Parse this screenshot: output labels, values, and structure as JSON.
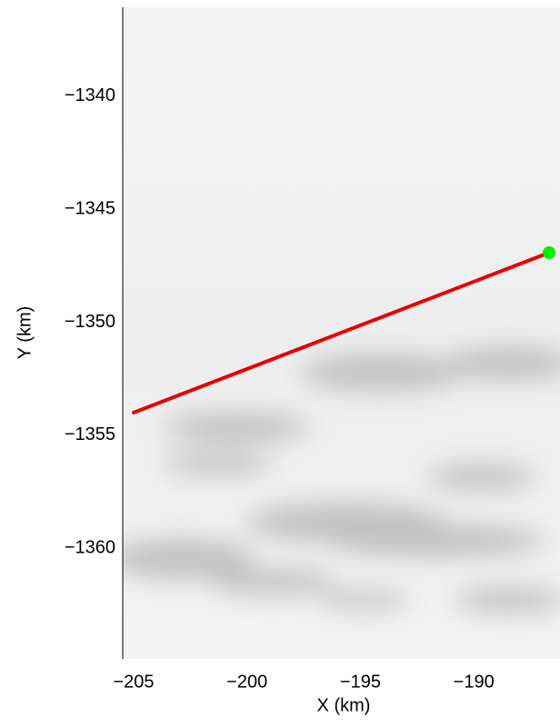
{
  "chart_data": {
    "type": "line",
    "xlabel": "X (km)",
    "ylabel": "Y (km)",
    "xlim": [
      -205.48,
      -186.2
    ],
    "ylim": [
      -1364.9,
      -1336.06
    ],
    "xticks": [
      {
        "value": -205,
        "label": "−205"
      },
      {
        "value": -200,
        "label": "−200"
      },
      {
        "value": -195,
        "label": "−195"
      },
      {
        "value": -190,
        "label": "−190"
      }
    ],
    "yticks": [
      {
        "value": -1340,
        "label": "−1340"
      },
      {
        "value": -1345,
        "label": "−1345"
      },
      {
        "value": -1350,
        "label": "−1350"
      },
      {
        "value": -1355,
        "label": "−1355"
      },
      {
        "value": -1360,
        "label": "−1360"
      }
    ],
    "line": {
      "x": [
        -205,
        -186.68
      ],
      "y": [
        -1354,
        -1346.92
      ],
      "color": "#e60000"
    },
    "marker": {
      "x": -186.68,
      "y": -1346.92,
      "color": "#00ee00"
    }
  }
}
